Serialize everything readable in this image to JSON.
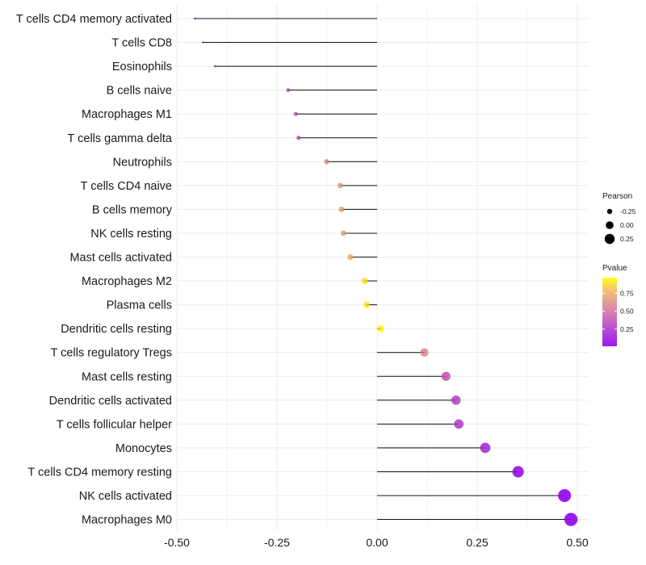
{
  "chart_data": {
    "type": "lollipop",
    "title": "",
    "xlabel": "",
    "ylabel": "",
    "xlim": [
      -0.5,
      0.5
    ],
    "x_ticks": [
      -0.5,
      -0.25,
      0.0,
      0.25,
      0.5
    ],
    "x_tick_labels": [
      "-0.50",
      "-0.25",
      "0.00",
      "0.25",
      "0.50"
    ],
    "grid": true,
    "categories": [
      "T cells CD4 memory activated",
      "T cells CD8",
      "Eosinophils",
      "B cells naive",
      "Macrophages M1",
      "T cells gamma delta",
      "Neutrophils",
      "T cells CD4 naive",
      "B cells memory",
      "NK cells resting",
      "Mast cells activated",
      "Macrophages M2",
      "Plasma cells",
      "Dendritic cells resting",
      "T cells regulatory  Tregs",
      "Mast cells resting",
      "Dendritic cells activated",
      "T cells follicular helper",
      "Monocytes",
      "T cells CD4 memory resting",
      "NK cells activated",
      "Macrophages M0"
    ],
    "pearson": [
      -0.455,
      -0.435,
      -0.405,
      -0.222,
      -0.203,
      -0.196,
      -0.126,
      -0.092,
      -0.089,
      -0.084,
      -0.067,
      -0.031,
      -0.026,
      0.009,
      0.118,
      0.172,
      0.197,
      0.204,
      0.27,
      0.352,
      0.468,
      0.484
    ],
    "pvalue": [
      0.01,
      0.01,
      0.02,
      0.32,
      0.36,
      0.37,
      0.62,
      0.7,
      0.71,
      0.73,
      0.78,
      0.92,
      0.93,
      0.98,
      0.6,
      0.4,
      0.3,
      0.28,
      0.2,
      0.06,
      0.01,
      0.01
    ],
    "legend": {
      "position": "right",
      "size_title": "Pearson",
      "size_labels": [
        "-0.25",
        "0.00",
        "0.25"
      ],
      "color_title": "Pvalue",
      "color_labels": [
        "0.75",
        "0.50",
        "0.25"
      ],
      "color_low": "#9b19f5",
      "color_high": "#ffff1a"
    }
  }
}
